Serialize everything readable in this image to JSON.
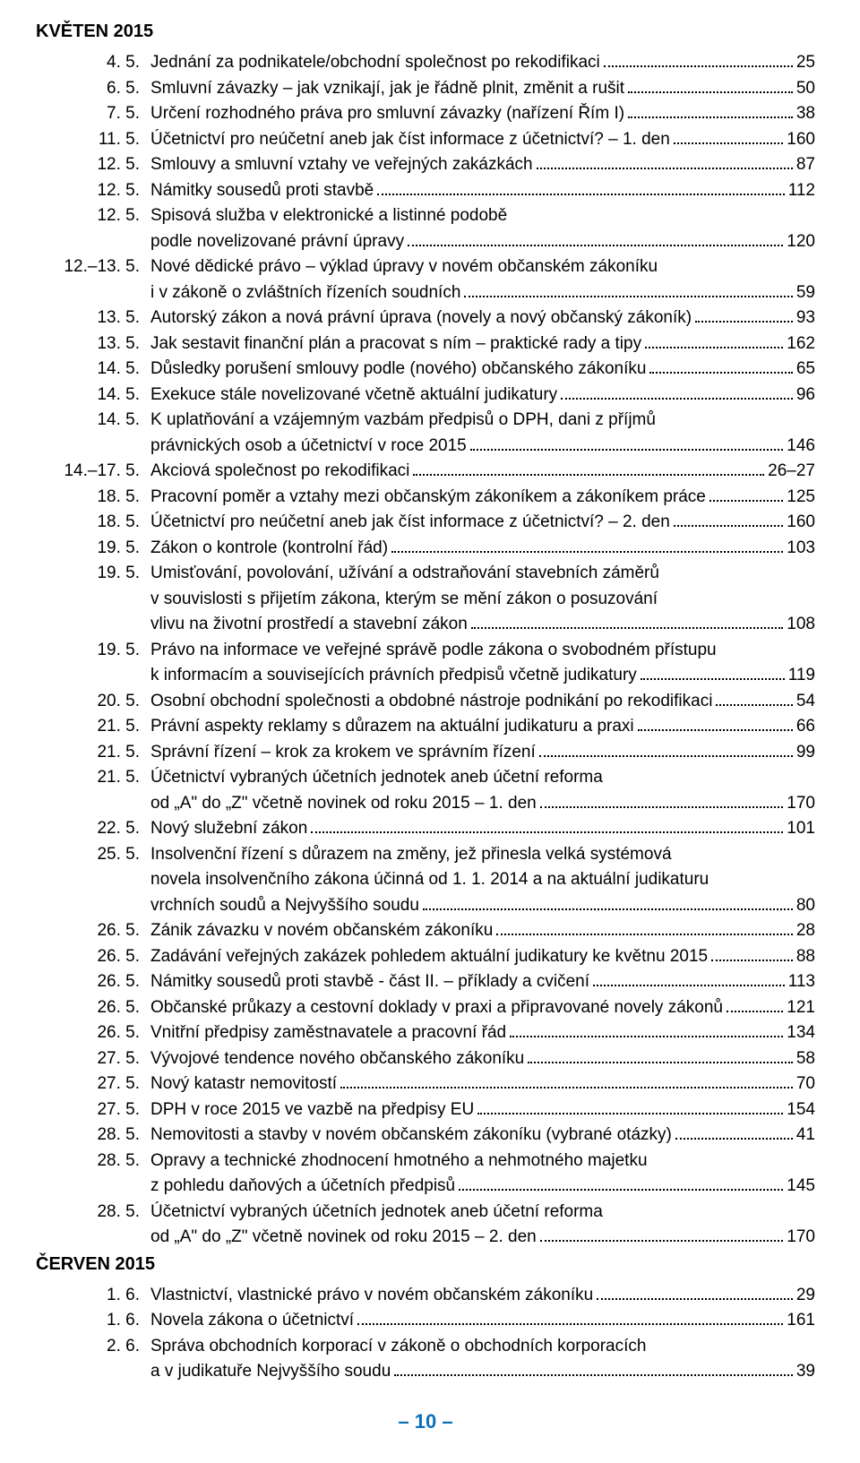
{
  "months": [
    {
      "header": "KVĚTEN 2015",
      "items": [
        {
          "date": "4. 5.",
          "lines": [
            "Jednání za podnikatele/obchodní společnost po rekodifikaci"
          ],
          "page": "25"
        },
        {
          "date": "6. 5.",
          "lines": [
            "Smluvní závazky – jak vznikají, jak je řádně plnit, změnit a rušit"
          ],
          "page": "50"
        },
        {
          "date": "7. 5.",
          "lines": [
            "Určení rozhodného práva pro smluvní závazky (nařízení Řím I)"
          ],
          "page": "38"
        },
        {
          "date": "11. 5.",
          "lines": [
            "Účetnictví pro neúčetní aneb jak číst informace z účetnictví? – 1. den"
          ],
          "page": "160"
        },
        {
          "date": "12. 5.",
          "lines": [
            "Smlouvy a smluvní vztahy ve veřejných zakázkách"
          ],
          "page": "87"
        },
        {
          "date": "12. 5.",
          "lines": [
            "Námitky sousedů proti stavbě"
          ],
          "page": "112"
        },
        {
          "date": "12. 5.",
          "lines": [
            "Spisová služba v elektronické a listinné podobě",
            "podle novelizované právní úpravy"
          ],
          "page": "120"
        },
        {
          "date": "12.–13. 5.",
          "lines": [
            "Nové dědické právo – výklad úpravy v novém občanském zákoníku",
            "i v zákoně o zvláštních řízeních soudních"
          ],
          "page": "59"
        },
        {
          "date": "13. 5.",
          "lines": [
            "Autorský zákon a nová právní úprava (novely a nový občanský zákoník)"
          ],
          "page": "93"
        },
        {
          "date": "13. 5.",
          "lines": [
            "Jak sestavit finanční plán a pracovat s ním – praktické rady a tipy"
          ],
          "page": "162"
        },
        {
          "date": "14. 5.",
          "lines": [
            "Důsledky porušení smlouvy podle (nového) občanského zákoníku"
          ],
          "page": "65"
        },
        {
          "date": "14. 5.",
          "lines": [
            "Exekuce stále novelizované včetně aktuální judikatury"
          ],
          "page": "96"
        },
        {
          "date": "14. 5.",
          "lines": [
            "K uplatňování a vzájemným vazbám předpisů o DPH, dani z příjmů",
            "právnických osob a účetnictví v roce 2015"
          ],
          "page": "146"
        },
        {
          "date": "14.–17. 5.",
          "lines": [
            "Akciová společnost po rekodifikaci"
          ],
          "page": "26–27"
        },
        {
          "date": "18. 5.",
          "lines": [
            "Pracovní poměr a vztahy mezi občanským zákoníkem a zákoníkem práce"
          ],
          "page": "125"
        },
        {
          "date": "18. 5.",
          "lines": [
            "Účetnictví pro neúčetní aneb jak číst informace z účetnictví? – 2. den"
          ],
          "page": "160"
        },
        {
          "date": "19. 5.",
          "lines": [
            "Zákon o kontrole (kontrolní řád)"
          ],
          "page": "103"
        },
        {
          "date": "19. 5.",
          "lines": [
            "Umisťování, povolování, užívání a odstraňování stavebních záměrů",
            "v souvislosti s přijetím zákona, kterým se mění zákon o posuzování",
            "vlivu na životní prostředí a stavební zákon"
          ],
          "page": "108"
        },
        {
          "date": "19. 5.",
          "lines": [
            "Právo na informace ve veřejné správě podle zákona o svobodném přístupu",
            "k informacím a souvisejících právních předpisů včetně judikatury"
          ],
          "page": "119"
        },
        {
          "date": "20. 5.",
          "lines": [
            "Osobní obchodní společnosti a obdobné nástroje podnikání po rekodifikaci"
          ],
          "page": "54"
        },
        {
          "date": "21. 5.",
          "lines": [
            "Právní aspekty reklamy s důrazem na aktuální judikaturu a praxi"
          ],
          "page": "66"
        },
        {
          "date": "21. 5.",
          "lines": [
            "Správní řízení – krok za krokem ve správním řízení"
          ],
          "page": "99"
        },
        {
          "date": "21. 5.",
          "lines": [
            "Účetnictví vybraných účetních jednotek aneb účetní reforma",
            "od „A\" do „Z\" včetně novinek od roku 2015 – 1. den"
          ],
          "page": "170"
        },
        {
          "date": "22. 5.",
          "lines": [
            "Nový služební zákon"
          ],
          "page": "101"
        },
        {
          "date": "25. 5.",
          "lines": [
            "Insolvenční řízení s důrazem na změny, jež přinesla velká systémová",
            "novela insolvenčního zákona účinná od 1. 1. 2014 a na aktuální judikaturu",
            "vrchních soudů a Nejvyššího soudu"
          ],
          "page": "80"
        },
        {
          "date": "26. 5.",
          "lines": [
            "Zánik závazku v novém občanském zákoníku"
          ],
          "page": "28"
        },
        {
          "date": "26. 5.",
          "lines": [
            "Zadávání veřejných zakázek pohledem aktuální judikatury ke květnu 2015"
          ],
          "page": "88"
        },
        {
          "date": "26. 5.",
          "lines": [
            "Námitky sousedů proti stavbě - část II. – příklady a cvičení"
          ],
          "page": "113"
        },
        {
          "date": "26. 5.",
          "lines": [
            "Občanské průkazy a cestovní doklady v praxi a připravované novely zákonů"
          ],
          "page": "121"
        },
        {
          "date": "26. 5.",
          "lines": [
            "Vnitřní předpisy zaměstnavatele a pracovní řád"
          ],
          "page": "134"
        },
        {
          "date": "27. 5.",
          "lines": [
            "Vývojové tendence nového občanského zákoníku"
          ],
          "page": "58"
        },
        {
          "date": "27. 5.",
          "lines": [
            "Nový katastr nemovitostí"
          ],
          "page": "70"
        },
        {
          "date": "27. 5.",
          "lines": [
            "DPH v roce 2015 ve vazbě na předpisy EU"
          ],
          "page": "154"
        },
        {
          "date": "28. 5.",
          "lines": [
            "Nemovitosti a stavby v novém občanském zákoníku (vybrané otázky)"
          ],
          "page": "41"
        },
        {
          "date": "28. 5.",
          "lines": [
            "Opravy a technické zhodnocení hmotného a nehmotného majetku",
            "z pohledu daňových a účetních předpisů"
          ],
          "page": "145"
        },
        {
          "date": "28. 5.",
          "lines": [
            "Účetnictví vybraných účetních jednotek aneb účetní reforma",
            "od „A\" do „Z\" včetně novinek od roku 2015 – 2. den"
          ],
          "page": "170"
        }
      ]
    },
    {
      "header": "ČERVEN 2015",
      "items": [
        {
          "date": "1. 6.",
          "lines": [
            "Vlastnictví, vlastnické právo v novém občanském zákoníku"
          ],
          "page": "29"
        },
        {
          "date": "1. 6.",
          "lines": [
            "Novela zákona o účetnictví"
          ],
          "page": "161"
        },
        {
          "date": "2. 6.",
          "lines": [
            "Správa obchodních korporací v zákoně o obchodních korporacích",
            "a v judikatuře Nejvyššího soudu"
          ],
          "page": "39"
        }
      ]
    }
  ],
  "footer": "– 10 –"
}
